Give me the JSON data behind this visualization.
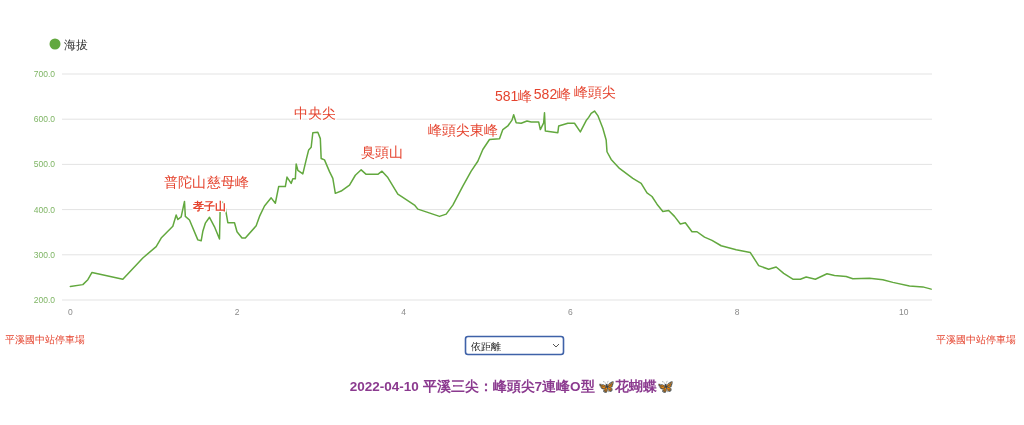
{
  "chart_data": {
    "type": "line",
    "title": "2022-04-10 平溪三尖：峰頭尖7連峰O型 🦋花蝴蝶🦋",
    "x": [
      0,
      0.15,
      0.21,
      0.26,
      0.63,
      0.87,
      1.03,
      1.09,
      1.23,
      1.27,
      1.29,
      1.33,
      1.37,
      1.38,
      1.43,
      1.53,
      1.57,
      1.59,
      1.62,
      1.67,
      1.73,
      1.79,
      1.8,
      1.85,
      1.89,
      1.97,
      2.0,
      2.06,
      2.1,
      2.23,
      2.27,
      2.33,
      2.41,
      2.46,
      2.5,
      2.58,
      2.6,
      2.65,
      2.67,
      2.7,
      2.71,
      2.73,
      2.79,
      2.83,
      2.86,
      2.89,
      2.91,
      2.97,
      3.0,
      3.01,
      3.05,
      3.11,
      3.15,
      3.18,
      3.25,
      3.35,
      3.42,
      3.49,
      3.55,
      3.69,
      3.74,
      3.81,
      3.93,
      3.99,
      4.13,
      4.17,
      4.27,
      4.43,
      4.51,
      4.59,
      4.71,
      4.81,
      4.89,
      4.95,
      5.03,
      5.15,
      5.19,
      5.25,
      5.3,
      5.32,
      5.35,
      5.41,
      5.48,
      5.53,
      5.62,
      5.64,
      5.68,
      5.69,
      5.7,
      5.85,
      5.86,
      5.97,
      6.05,
      6.12,
      6.19,
      6.22,
      6.25,
      6.29,
      6.33,
      6.39,
      6.43,
      6.44,
      6.49,
      6.59,
      6.67,
      6.75,
      6.85,
      6.92,
      6.98,
      7.04,
      7.11,
      7.18,
      7.25,
      7.32,
      7.38,
      7.46,
      7.52,
      7.61,
      7.7,
      7.81,
      7.99,
      8.16,
      8.26,
      8.38,
      8.47,
      8.56,
      8.67,
      8.76,
      8.83,
      8.94,
      9.08,
      9.17,
      9.31,
      9.39,
      9.59,
      9.75,
      9.87,
      10.07,
      10.23,
      10.33
    ],
    "series": [
      {
        "name": "海拔",
        "color": "#62a83e",
        "values": [
          230,
          234,
          245,
          261,
          246,
          293,
          318,
          337,
          363,
          388,
          378,
          384,
          418,
          385,
          377,
          333,
          331,
          352,
          370,
          383,
          362,
          335,
          418,
          414,
          371,
          371,
          351,
          337,
          337,
          364,
          385,
          408,
          426,
          414,
          451,
          451,
          472,
          458,
          468,
          468,
          501,
          487,
          479,
          510,
          532,
          538,
          570,
          571,
          557,
          513,
          510,
          484,
          469,
          436,
          441,
          454,
          476,
          488,
          478,
          478,
          485,
          471,
          434,
          427,
          410,
          401,
          395,
          385,
          390,
          410,
          452,
          485,
          507,
          533,
          555,
          557,
          577,
          585,
          598,
          610,
          592,
          591,
          596,
          594,
          594,
          577,
          592,
          614,
          574,
          570,
          585,
          591,
          591,
          572,
          597,
          604,
          613,
          618,
          608,
          580,
          554,
          528,
          511,
          491,
          480,
          469,
          458,
          437,
          429,
          412,
          396,
          398,
          385,
          368,
          371,
          351,
          351,
          339,
          332,
          320,
          311,
          305,
          276,
          268,
          273,
          259,
          246,
          246,
          251,
          246,
          258,
          254,
          252,
          247,
          248,
          245,
          239,
          231,
          229,
          224
        ]
      }
    ],
    "xlim": [
      -0.1,
      10.34
    ],
    "xticks": [
      0,
      2,
      4,
      6,
      8,
      10
    ],
    "ylim": [
      200,
      700
    ],
    "yticks": [
      {
        "value": 200,
        "label": "200.0"
      },
      {
        "value": 300,
        "label": "300.0"
      },
      {
        "value": 400,
        "label": "400.0"
      },
      {
        "value": 500,
        "label": "500.0"
      },
      {
        "value": 600,
        "label": "600.0"
      },
      {
        "value": 700,
        "label": "700.0"
      }
    ],
    "grid": "y",
    "legend": "top left",
    "line_style": "solid",
    "annotations": [
      {
        "text": "普陀山",
        "x": 1.37,
        "y": 418
      },
      {
        "text": "孝子山",
        "x": 1.67,
        "y": 383
      },
      {
        "text": "慈母峰",
        "x": 1.8,
        "y": 418
      },
      {
        "text": "中央尖",
        "x": 2.94,
        "y": 571
      },
      {
        "text": "臭頭山",
        "x": 3.74,
        "y": 485
      },
      {
        "text": "峰頭尖東峰",
        "x": 4.95,
        "y": 533
      },
      {
        "text": "581峰",
        "x": 5.32,
        "y": 610
      },
      {
        "text": "582峰",
        "x": 5.69,
        "y": 614
      },
      {
        "text": "峰頭尖",
        "x": 6.29,
        "y": 618
      },
      "平溪國中站停車場",
      "依距離",
      "平溪國中站停車場"
    ]
  }
}
